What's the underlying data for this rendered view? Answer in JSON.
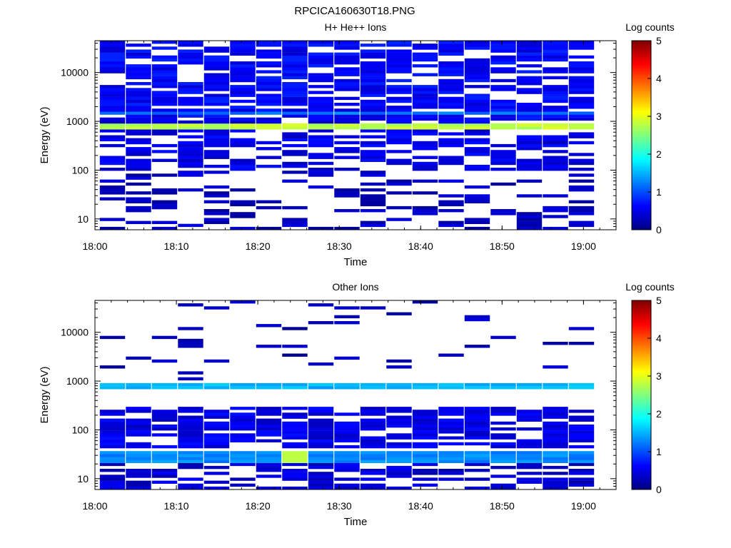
{
  "figure": {
    "title": "RPCICA160630T18.PNG"
  },
  "chart_data": [
    {
      "type": "heatmap",
      "title": "H+ He++ Ions",
      "xlabel": "Time",
      "ylabel": "Energy (eV)",
      "y_scale": "log",
      "xlim": [
        "18:00",
        "19:04"
      ],
      "ylim": [
        6,
        45000
      ],
      "x_ticks": [
        "18:00",
        "18:10",
        "18:20",
        "18:30",
        "18:40",
        "18:50",
        "19:00"
      ],
      "y_ticks": [
        "10",
        "100",
        "1000",
        "10000"
      ],
      "colorbar": {
        "label": "Log counts",
        "range": [
          0,
          5
        ],
        "ticks": [
          "0",
          "1",
          "2",
          "3",
          "4",
          "5"
        ]
      },
      "scan_interval_minutes": 3.2,
      "scan_count": 19,
      "bands": [
        {
          "energy_range_eV": [
            700,
            850
          ],
          "log_counts": 2.8,
          "description": "persistent band near 750 eV, present in all scans"
        },
        {
          "energy_range_eV": [
            1450,
            1600
          ],
          "log_counts": 1.2,
          "description": "weak band at start of interval"
        },
        {
          "energy_range_eV": [
            1000,
            45000
          ],
          "log_counts": 0.4,
          "coverage": 0.75
        },
        {
          "energy_range_eV": [
            100,
            1000
          ],
          "log_counts": 0.3,
          "coverage": 0.6
        },
        {
          "energy_range_eV": [
            6,
            100
          ],
          "log_counts": 0.1,
          "coverage": 0.35
        }
      ]
    },
    {
      "type": "heatmap",
      "title": "Other Ions",
      "xlabel": "Time",
      "ylabel": "Energy (eV)",
      "y_scale": "log",
      "xlim": [
        "18:00",
        "19:04"
      ],
      "ylim": [
        6,
        45000
      ],
      "x_ticks": [
        "18:00",
        "18:10",
        "18:20",
        "18:30",
        "18:40",
        "18:50",
        "19:00"
      ],
      "y_ticks": [
        "10",
        "100",
        "1000",
        "10000"
      ],
      "colorbar": {
        "label": "Log counts",
        "range": [
          0,
          5
        ],
        "ticks": [
          "0",
          "1",
          "2",
          "3",
          "4",
          "5"
        ]
      },
      "scan_interval_minutes": 3.2,
      "scan_count": 19,
      "bands": [
        {
          "energy_range_eV": [
            650,
            850
          ],
          "log_counts": 1.5,
          "description": "persistent band near 750 eV"
        },
        {
          "energy_range_eV": [
            22,
            35
          ],
          "log_counts": 1.3,
          "description": "persistent band near 28 eV",
          "peak": {
            "time": "18:25",
            "log_counts": 2.8
          }
        },
        {
          "energy_range_eV": [
            40,
            300
          ],
          "log_counts": 0.3,
          "coverage": 0.7
        },
        {
          "energy_range_eV": [
            6,
            20
          ],
          "log_counts": 0.2,
          "coverage": 0.6
        },
        {
          "energy_range_eV": [
            1000,
            45000
          ],
          "log_counts": 0.05,
          "coverage": 0.08
        }
      ]
    }
  ]
}
